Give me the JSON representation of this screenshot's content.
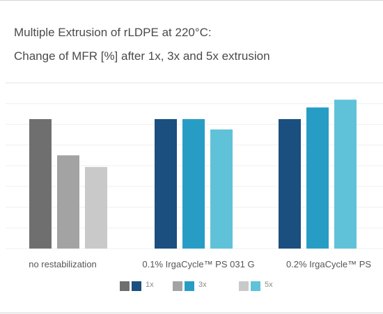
{
  "chart_data": {
    "type": "bar",
    "title": "Multiple Extrusion of rLDPE at 220°C:",
    "subtitle": "Change of MFR [%] after 1x, 3x and 5x extrusion",
    "categories": [
      "no restabilization",
      "0.1% IrgaCycle™ PS 031 G",
      "0.2% IrgaCycle™ PS"
    ],
    "series": [
      {
        "name": "1x",
        "values": [
          100,
          100,
          100
        ],
        "colors": [
          "#6f6f6f",
          "#1a4f7f",
          "#1a4f7f"
        ]
      },
      {
        "name": "3x",
        "values": [
          72,
          100,
          109
        ],
        "colors": [
          "#a3a3a3",
          "#279dc5",
          "#279dc5"
        ]
      },
      {
        "name": "5x",
        "values": [
          63,
          92,
          115
        ],
        "colors": [
          "#c9c9c9",
          "#5fc2d8",
          "#5fc2d8"
        ]
      }
    ],
    "ylim": [
      0,
      128
    ],
    "grid": true,
    "y_ticks_visible": false,
    "legend_position": "bottom"
  }
}
